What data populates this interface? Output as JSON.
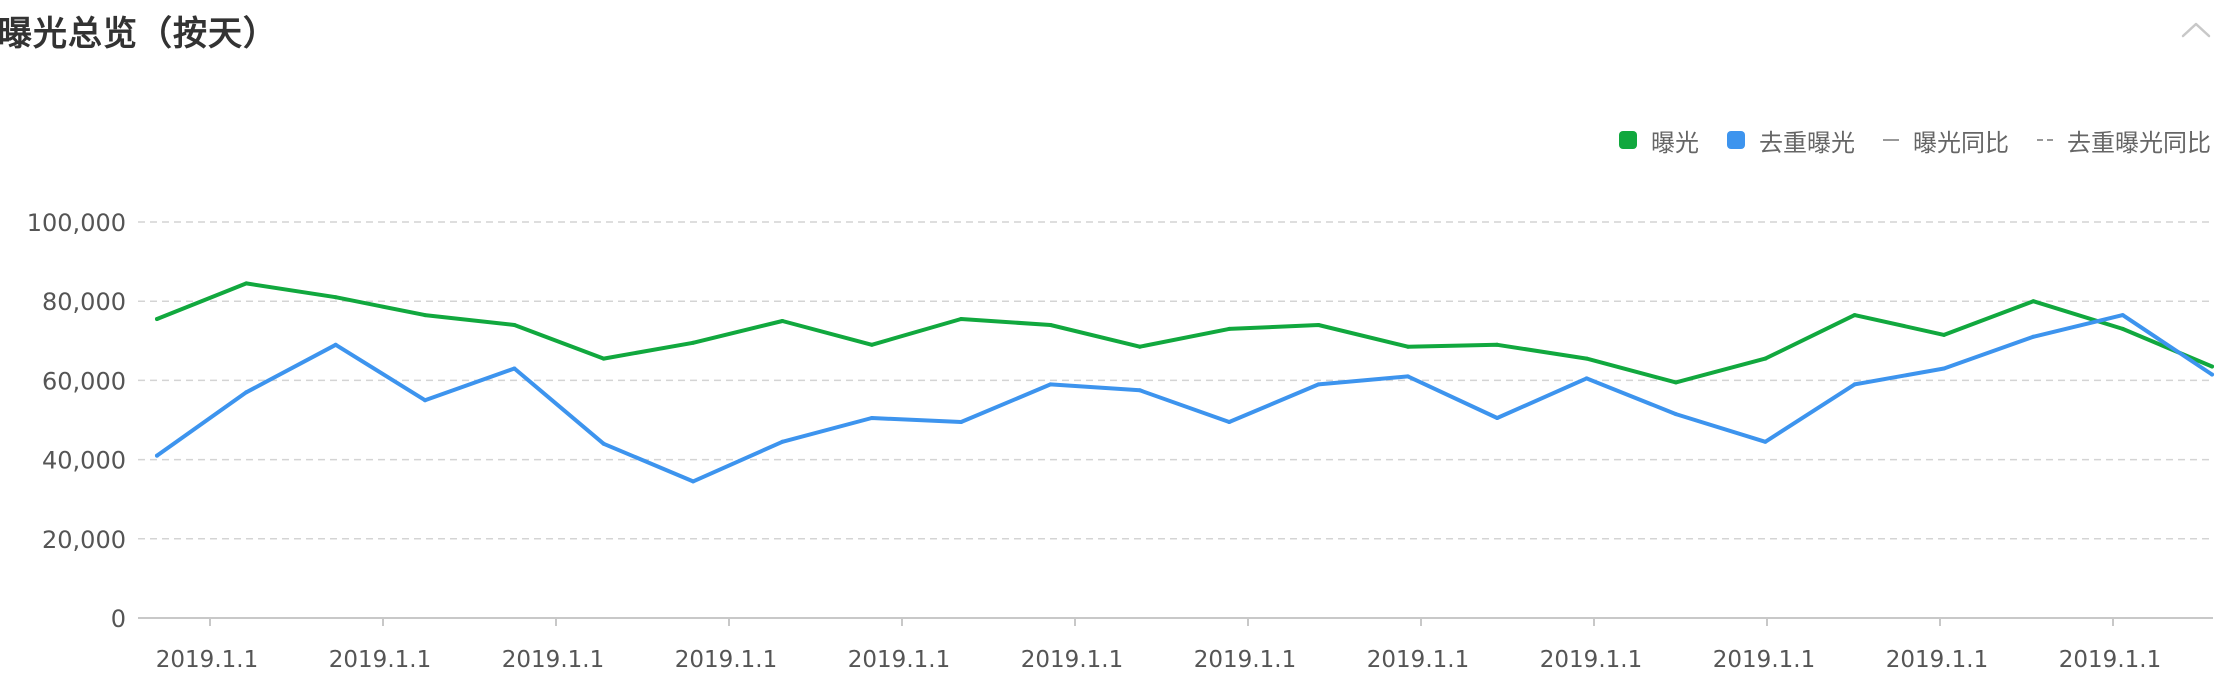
{
  "page": {
    "title": "曝光总览（按天）"
  },
  "legend": [
    {
      "label": "曝光",
      "kind": "square",
      "color": "#11a83e"
    },
    {
      "label": "去重曝光",
      "kind": "square",
      "color": "#3d94ee"
    },
    {
      "label": "曝光同比",
      "kind": "line",
      "color": "#999999"
    },
    {
      "label": "去重曝光同比",
      "kind": "dashed",
      "color": "#999999"
    }
  ],
  "chart_data": {
    "type": "line",
    "title": "曝光总览（按天）",
    "xlabel": "",
    "ylabel": "",
    "ylim": [
      0,
      100000
    ],
    "yticks": [
      0,
      20000,
      40000,
      60000,
      80000,
      100000
    ],
    "ytick_labels": [
      "0",
      "20,000",
      "40,000",
      "60,000",
      "80,000",
      "100,000"
    ],
    "xtick_labels": [
      "2019.1.1",
      "2019.1.1",
      "2019.1.1",
      "2019.1.1",
      "2019.1.1",
      "2019.1.1",
      "2019.1.1",
      "2019.1.1",
      "2019.1.1",
      "2019.1.1",
      "2019.1.1",
      "2019.1.1"
    ],
    "grid": true,
    "legend_position": "top-right",
    "series": [
      {
        "name": "曝光",
        "color": "#11a83e",
        "values": [
          75500,
          84500,
          81000,
          76500,
          74000,
          65500,
          69500,
          75000,
          69000,
          75500,
          74000,
          68500,
          73000,
          74000,
          68500,
          69000,
          65500,
          59500,
          65500,
          76500,
          71500,
          80000,
          73000,
          63500
        ]
      },
      {
        "name": "去重曝光",
        "color": "#3d94ee",
        "values": [
          41000,
          57000,
          69000,
          55000,
          63000,
          44000,
          34500,
          44500,
          50500,
          49500,
          59000,
          57500,
          49500,
          59000,
          61000,
          50500,
          60500,
          51500,
          44500,
          59000,
          63000,
          71000,
          76500,
          61500
        ]
      }
    ]
  }
}
